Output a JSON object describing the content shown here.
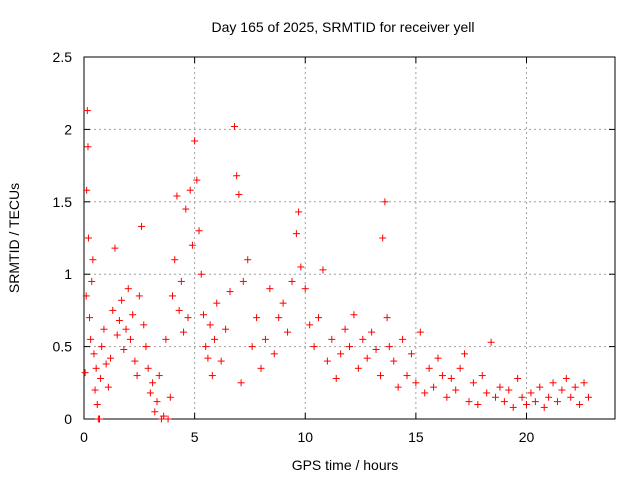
{
  "chart_data": {
    "type": "scatter",
    "title": "Day 165 of 2025, SRMTID for receiver yell",
    "xlabel": "GPS time / hours",
    "ylabel": "SRMTID / TECUs",
    "xlim": [
      0,
      24
    ],
    "ylim": [
      0,
      2.5
    ],
    "xticks": [
      0,
      5,
      10,
      15,
      20
    ],
    "xtick_labels": [
      "0",
      "5",
      "10",
      "15",
      "20"
    ],
    "yticks": [
      0,
      0.5,
      1,
      1.5,
      2,
      2.5
    ],
    "ytick_labels": [
      "0",
      "0.5",
      "1",
      "1.5",
      "2",
      "2.5"
    ],
    "grid": true,
    "marker": "+",
    "color": "#ff0000",
    "series": [
      {
        "name": "SRMTID",
        "points": [
          [
            0.05,
            0.32
          ],
          [
            0.1,
            0.85
          ],
          [
            0.12,
            1.58
          ],
          [
            0.15,
            2.13
          ],
          [
            0.18,
            1.88
          ],
          [
            0.2,
            1.25
          ],
          [
            0.25,
            0.7
          ],
          [
            0.3,
            0.55
          ],
          [
            0.35,
            0.95
          ],
          [
            0.4,
            1.1
          ],
          [
            0.45,
            0.45
          ],
          [
            0.5,
            0.2
          ],
          [
            0.55,
            0.35
          ],
          [
            0.6,
            0.1
          ],
          [
            0.65,
            0.0
          ],
          [
            0.7,
            0.0
          ],
          [
            0.75,
            0.28
          ],
          [
            0.8,
            0.5
          ],
          [
            0.9,
            0.62
          ],
          [
            1.0,
            0.38
          ],
          [
            1.1,
            0.22
          ],
          [
            1.2,
            0.42
          ],
          [
            1.3,
            0.75
          ],
          [
            1.4,
            1.18
          ],
          [
            1.5,
            0.58
          ],
          [
            1.6,
            0.68
          ],
          [
            1.7,
            0.82
          ],
          [
            1.8,
            0.48
          ],
          [
            1.9,
            0.62
          ],
          [
            2.0,
            0.9
          ],
          [
            2.1,
            0.55
          ],
          [
            2.2,
            0.72
          ],
          [
            2.3,
            0.4
          ],
          [
            2.4,
            0.3
          ],
          [
            2.5,
            0.85
          ],
          [
            2.6,
            1.33
          ],
          [
            2.7,
            0.65
          ],
          [
            2.8,
            0.5
          ],
          [
            2.9,
            0.35
          ],
          [
            3.0,
            0.18
          ],
          [
            3.1,
            0.25
          ],
          [
            3.2,
            0.05
          ],
          [
            3.3,
            0.12
          ],
          [
            3.4,
            0.3
          ],
          [
            3.5,
            0.0
          ],
          [
            3.6,
            0.02
          ],
          [
            3.7,
            0.55
          ],
          [
            3.8,
            0.0
          ],
          [
            3.9,
            0.15
          ],
          [
            4.0,
            0.85
          ],
          [
            4.1,
            1.1
          ],
          [
            4.2,
            1.54
          ],
          [
            4.3,
            0.75
          ],
          [
            4.4,
            0.95
          ],
          [
            4.5,
            0.6
          ],
          [
            4.6,
            1.45
          ],
          [
            4.7,
            0.7
          ],
          [
            4.8,
            1.58
          ],
          [
            4.9,
            1.2
          ],
          [
            5.0,
            1.92
          ],
          [
            5.1,
            1.65
          ],
          [
            5.2,
            1.3
          ],
          [
            5.3,
            1.0
          ],
          [
            5.4,
            0.72
          ],
          [
            5.5,
            0.5
          ],
          [
            5.6,
            0.42
          ],
          [
            5.7,
            0.65
          ],
          [
            5.8,
            0.3
          ],
          [
            5.9,
            0.55
          ],
          [
            6.0,
            0.8
          ],
          [
            6.2,
            0.4
          ],
          [
            6.4,
            0.62
          ],
          [
            6.6,
            0.88
          ],
          [
            6.8,
            2.02
          ],
          [
            6.9,
            1.68
          ],
          [
            7.0,
            1.55
          ],
          [
            7.1,
            0.25
          ],
          [
            7.2,
            0.95
          ],
          [
            7.4,
            1.1
          ],
          [
            7.6,
            0.5
          ],
          [
            7.8,
            0.7
          ],
          [
            8.0,
            0.35
          ],
          [
            8.2,
            0.55
          ],
          [
            8.4,
            0.9
          ],
          [
            8.6,
            0.45
          ],
          [
            8.8,
            0.7
          ],
          [
            9.0,
            0.8
          ],
          [
            9.2,
            0.6
          ],
          [
            9.4,
            0.95
          ],
          [
            9.6,
            1.28
          ],
          [
            9.7,
            1.43
          ],
          [
            9.8,
            1.05
          ],
          [
            10.0,
            0.9
          ],
          [
            10.2,
            0.65
          ],
          [
            10.4,
            0.5
          ],
          [
            10.6,
            0.7
          ],
          [
            10.8,
            1.03
          ],
          [
            11.0,
            0.4
          ],
          [
            11.2,
            0.55
          ],
          [
            11.4,
            0.28
          ],
          [
            11.6,
            0.45
          ],
          [
            11.8,
            0.62
          ],
          [
            12.0,
            0.5
          ],
          [
            12.2,
            0.72
          ],
          [
            12.4,
            0.35
          ],
          [
            12.6,
            0.55
          ],
          [
            12.8,
            0.42
          ],
          [
            13.0,
            0.6
          ],
          [
            13.2,
            0.48
          ],
          [
            13.4,
            0.3
          ],
          [
            13.5,
            1.25
          ],
          [
            13.6,
            1.5
          ],
          [
            13.7,
            0.7
          ],
          [
            13.8,
            0.5
          ],
          [
            14.0,
            0.4
          ],
          [
            14.2,
            0.22
          ],
          [
            14.4,
            0.55
          ],
          [
            14.6,
            0.3
          ],
          [
            14.8,
            0.45
          ],
          [
            15.0,
            0.25
          ],
          [
            15.2,
            0.6
          ],
          [
            15.4,
            0.18
          ],
          [
            15.6,
            0.35
          ],
          [
            15.8,
            0.22
          ],
          [
            16.0,
            0.42
          ],
          [
            16.2,
            0.3
          ],
          [
            16.4,
            0.15
          ],
          [
            16.6,
            0.28
          ],
          [
            16.8,
            0.2
          ],
          [
            17.0,
            0.35
          ],
          [
            17.2,
            0.45
          ],
          [
            17.4,
            0.12
          ],
          [
            17.6,
            0.25
          ],
          [
            17.8,
            0.1
          ],
          [
            18.0,
            0.3
          ],
          [
            18.2,
            0.18
          ],
          [
            18.4,
            0.53
          ],
          [
            18.6,
            0.15
          ],
          [
            18.8,
            0.22
          ],
          [
            19.0,
            0.12
          ],
          [
            19.2,
            0.2
          ],
          [
            19.4,
            0.08
          ],
          [
            19.6,
            0.28
          ],
          [
            19.8,
            0.15
          ],
          [
            20.0,
            0.1
          ],
          [
            20.2,
            0.18
          ],
          [
            20.4,
            0.12
          ],
          [
            20.6,
            0.22
          ],
          [
            20.8,
            0.08
          ],
          [
            21.0,
            0.15
          ],
          [
            21.2,
            0.25
          ],
          [
            21.4,
            0.12
          ],
          [
            21.6,
            0.2
          ],
          [
            21.8,
            0.28
          ],
          [
            22.0,
            0.15
          ],
          [
            22.2,
            0.22
          ],
          [
            22.4,
            0.1
          ],
          [
            22.6,
            0.25
          ],
          [
            22.8,
            0.15
          ]
        ]
      }
    ]
  }
}
